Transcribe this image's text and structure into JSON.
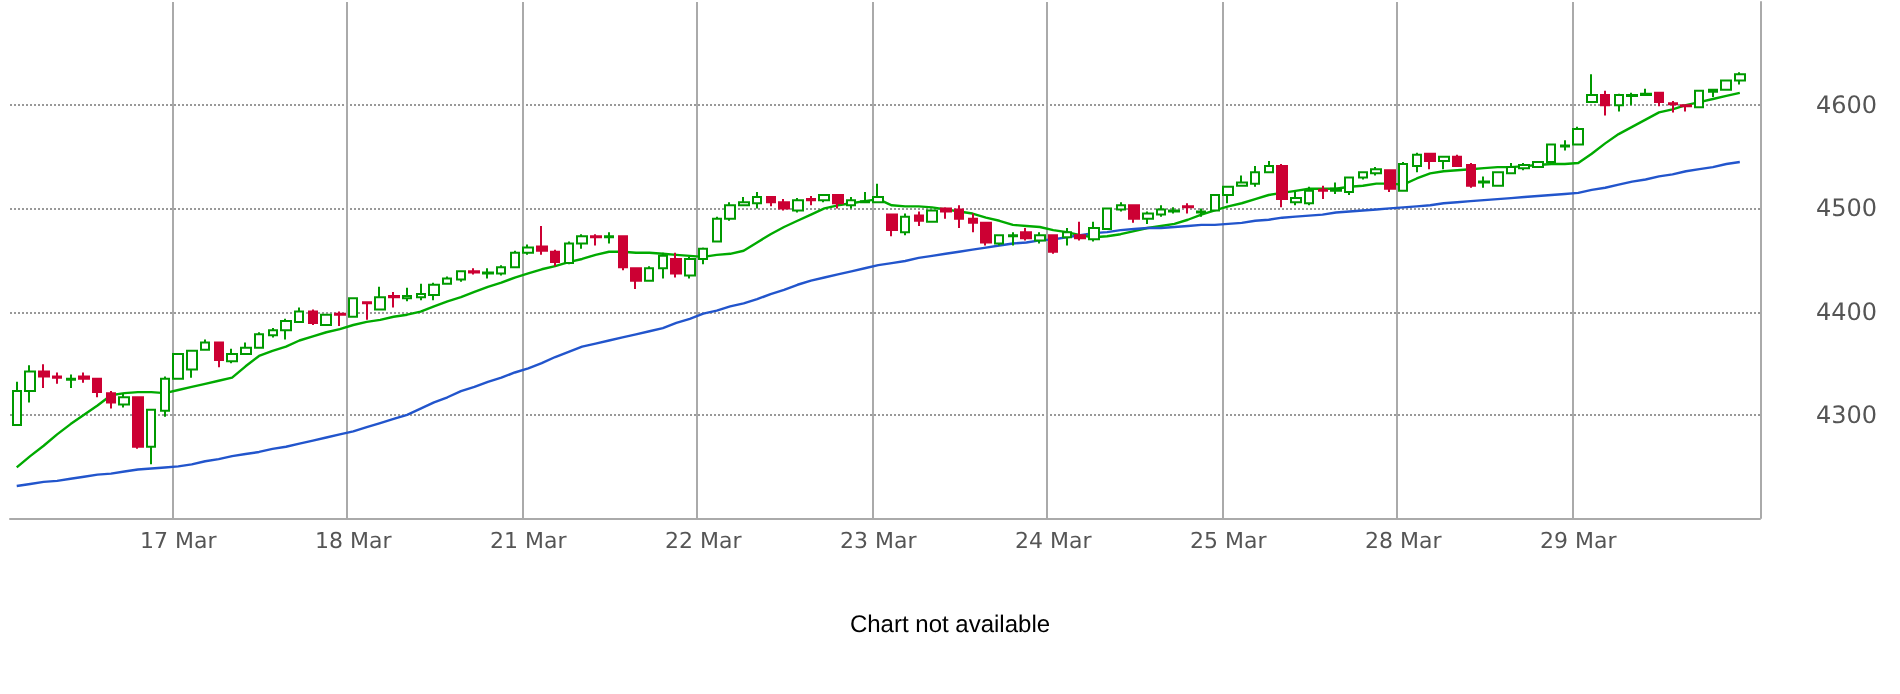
{
  "chart_data": {
    "type": "candlestick",
    "categories": [
      null,
      null,
      null,
      null,
      null,
      null,
      null,
      null,
      null,
      null,
      null,
      null,
      "17 Mar",
      null,
      null,
      null,
      null,
      null,
      null,
      null,
      null,
      null,
      null,
      null,
      null,
      "18 Mar",
      null,
      null,
      null,
      null,
      null,
      null,
      null,
      null,
      null,
      null,
      null,
      null,
      "21 Mar",
      null,
      null,
      null,
      null,
      null,
      null,
      null,
      null,
      null,
      null,
      null,
      null,
      "22 Mar",
      null,
      null,
      null,
      null,
      null,
      null,
      null,
      null,
      null,
      null,
      null,
      null,
      "23 Mar",
      null,
      null,
      null,
      null,
      null,
      null,
      null,
      null,
      null,
      null,
      null,
      null,
      "24 Mar",
      null,
      null,
      null,
      null,
      null,
      null,
      null,
      null,
      null,
      null,
      null,
      null,
      "25 Mar",
      null,
      null,
      null,
      null,
      null,
      null,
      null,
      null,
      null,
      null,
      null,
      null,
      "28 Mar",
      null,
      null,
      null,
      null,
      null,
      null,
      null,
      null,
      null,
      null,
      null,
      null,
      "29 Mar",
      null,
      null,
      null,
      null,
      null,
      null,
      null,
      null,
      null,
      null,
      null,
      null,
      null
    ],
    "ohlc": [
      [
        4290,
        4332,
        4290,
        4323
      ],
      [
        4323,
        4348,
        4312,
        4342
      ],
      [
        4342,
        4349,
        4326,
        4337
      ],
      [
        4337,
        4341,
        4330,
        4336
      ],
      [
        4334,
        4339,
        4326,
        4335
      ],
      [
        4337,
        4341,
        4331,
        4335
      ],
      [
        4335,
        4336,
        4317,
        4322
      ],
      [
        4321,
        4323,
        4306,
        4312
      ],
      [
        4310,
        4321,
        4307,
        4317
      ],
      [
        4317,
        4317,
        4267,
        4269
      ],
      [
        4269,
        4305,
        4252,
        4305
      ],
      [
        4304,
        4337,
        4298,
        4335
      ],
      [
        4335,
        4359,
        4335,
        4359
      ],
      [
        4344,
        4362,
        4336,
        4362
      ],
      [
        4363,
        4373,
        4363,
        4370
      ],
      [
        4370,
        4370,
        4346,
        4353
      ],
      [
        4352,
        4364,
        4350,
        4359
      ],
      [
        4359,
        4370,
        4358,
        4365
      ],
      [
        4365,
        4380,
        4364,
        4378
      ],
      [
        4377,
        4384,
        4375,
        4382
      ],
      [
        4382,
        4393,
        4373,
        4391
      ],
      [
        4390,
        4404,
        4389,
        4400
      ],
      [
        4400,
        4402,
        4387,
        4389
      ],
      [
        4387,
        4398,
        4387,
        4397
      ],
      [
        4398,
        4400,
        4386,
        4397
      ],
      [
        4395,
        4414,
        4394,
        4413
      ],
      [
        4409,
        4409,
        4392,
        4408
      ],
      [
        4402,
        4424,
        4401,
        4414
      ],
      [
        4415,
        4419,
        4404,
        4414
      ],
      [
        4413,
        4423,
        4410,
        4415
      ],
      [
        4414,
        4427,
        4411,
        4417
      ],
      [
        4416,
        4428,
        4411,
        4426
      ],
      [
        4427,
        4434,
        4426,
        4432
      ],
      [
        4431,
        4440,
        4429,
        4439
      ],
      [
        4439,
        4442,
        4436,
        4438
      ],
      [
        4437,
        4442,
        4432,
        4438
      ],
      [
        4437,
        4445,
        4435,
        4443
      ],
      [
        4443,
        4459,
        4442,
        4457
      ],
      [
        4457,
        4465,
        4455,
        4462
      ],
      [
        4463,
        4483,
        4455,
        4459
      ],
      [
        4458,
        4460,
        4444,
        4448
      ],
      [
        4447,
        4468,
        4446,
        4466
      ],
      [
        4466,
        4475,
        4461,
        4473
      ],
      [
        4473,
        4475,
        4464,
        4472
      ],
      [
        4472,
        4477,
        4466,
        4473
      ],
      [
        4473,
        4473,
        4440,
        4443
      ],
      [
        4442,
        4442,
        4422,
        4430
      ],
      [
        4430,
        4444,
        4429,
        4442
      ],
      [
        4442,
        4457,
        4432,
        4454
      ],
      [
        4451,
        4457,
        4433,
        4437
      ],
      [
        4435,
        4453,
        4432,
        4451
      ],
      [
        4451,
        4462,
        4446,
        4461
      ],
      [
        4468,
        4492,
        4468,
        4490
      ],
      [
        4490,
        4506,
        4488,
        4503
      ],
      [
        4503,
        4511,
        4503,
        4506
      ],
      [
        4505,
        4516,
        4500,
        4511
      ],
      [
        4511,
        4511,
        4502,
        4506
      ],
      [
        4506,
        4509,
        4498,
        4500
      ],
      [
        4498,
        4510,
        4496,
        4508
      ],
      [
        4509,
        4512,
        4503,
        4508
      ],
      [
        4508,
        4513,
        4506,
        4513
      ],
      [
        4513,
        4513,
        4500,
        4505
      ],
      [
        4503,
        4511,
        4500,
        4508
      ],
      [
        4506,
        4516,
        4505,
        4507
      ],
      [
        4506,
        4524,
        4506,
        4511
      ],
      [
        4494,
        4494,
        4473,
        4479
      ],
      [
        4477,
        4495,
        4474,
        4492
      ],
      [
        4493,
        4497,
        4483,
        4488
      ],
      [
        4487,
        4498,
        4487,
        4498
      ],
      [
        4500,
        4501,
        4490,
        4497
      ],
      [
        4499,
        4503,
        4481,
        4490
      ],
      [
        4490,
        4495,
        4477,
        4486
      ],
      [
        4486,
        4486,
        4464,
        4467
      ],
      [
        4466,
        4474,
        4464,
        4474
      ],
      [
        4473,
        4477,
        4464,
        4474
      ],
      [
        4477,
        4481,
        4469,
        4471
      ],
      [
        4469,
        4477,
        4466,
        4474
      ],
      [
        4474,
        4475,
        4456,
        4458
      ],
      [
        4472,
        4481,
        4464,
        4477
      ],
      [
        4474,
        4487,
        4469,
        4471
      ],
      [
        4470,
        4487,
        4468,
        4481
      ],
      [
        4480,
        4500,
        4479,
        4500
      ],
      [
        4499,
        4506,
        4497,
        4503
      ],
      [
        4503,
        4503,
        4486,
        4490
      ],
      [
        4490,
        4497,
        4485,
        4495
      ],
      [
        4494,
        4503,
        4492,
        4499
      ],
      [
        4497,
        4501,
        4495,
        4498
      ],
      [
        4502,
        4505,
        4495,
        4501
      ],
      [
        4496,
        4500,
        4492,
        4497
      ],
      [
        4498,
        4514,
        4497,
        4513
      ],
      [
        4513,
        4522,
        4505,
        4521
      ],
      [
        4522,
        4532,
        4521,
        4525
      ],
      [
        4524,
        4541,
        4521,
        4535
      ],
      [
        4535,
        4546,
        4535,
        4541
      ],
      [
        4541,
        4543,
        4501,
        4509
      ],
      [
        4506,
        4517,
        4503,
        4510
      ],
      [
        4505,
        4521,
        4503,
        4517
      ],
      [
        4518,
        4522,
        4509,
        4517
      ],
      [
        4517,
        4525,
        4514,
        4519
      ],
      [
        4516,
        4530,
        4513,
        4530
      ],
      [
        4530,
        4535,
        4528,
        4535
      ],
      [
        4534,
        4540,
        4532,
        4538
      ],
      [
        4537,
        4537,
        4516,
        4519
      ],
      [
        4517,
        4545,
        4517,
        4543
      ],
      [
        4541,
        4554,
        4535,
        4552
      ],
      [
        4553,
        4554,
        4538,
        4546
      ],
      [
        4546,
        4550,
        4538,
        4550
      ],
      [
        4550,
        4552,
        4540,
        4541
      ],
      [
        4542,
        4544,
        4520,
        4522
      ],
      [
        4525,
        4531,
        4520,
        4526
      ],
      [
        4522,
        4535,
        4522,
        4535
      ],
      [
        4534,
        4544,
        4533,
        4540
      ],
      [
        4539,
        4544,
        4537,
        4542
      ],
      [
        4540,
        4545,
        4540,
        4545
      ],
      [
        4545,
        4563,
        4544,
        4562
      ],
      [
        4560,
        4566,
        4556,
        4561
      ],
      [
        4562,
        4579,
        4562,
        4577
      ],
      [
        4603,
        4630,
        4603,
        4610
      ],
      [
        4610,
        4614,
        4590,
        4600
      ],
      [
        4600,
        4611,
        4594,
        4610
      ],
      [
        4609,
        4612,
        4600,
        4610
      ],
      [
        4610,
        4616,
        4610,
        4611
      ],
      [
        4612,
        4612,
        4599,
        4603
      ],
      [
        4602,
        4604,
        4593,
        4601
      ],
      [
        4600,
        4600,
        4594,
        4599
      ],
      [
        4598,
        4614,
        4597,
        4614
      ],
      [
        4613,
        4615,
        4608,
        4615
      ],
      [
        4615,
        4625,
        4614,
        4624
      ],
      [
        4624,
        4632,
        4620,
        4630
      ],
      null
    ],
    "colors": [
      "#009900",
      "#009900",
      "#cc0033",
      "#cc0033",
      "#009900",
      "#cc0033",
      "#cc0033",
      "#cc0033",
      "#009900",
      "#cc0033",
      "#009900",
      "#009900",
      "#009900",
      "#009900",
      "#009900",
      "#cc0033",
      "#009900",
      "#009900",
      "#009900",
      "#009900",
      "#009900",
      "#009900",
      "#cc0033",
      "#009900",
      "#cc0033",
      "#009900",
      "#cc0033",
      "#009900",
      "#cc0033",
      "#009900",
      "#009900",
      "#009900",
      "#009900",
      "#009900",
      "#cc0033",
      "#009900",
      "#009900",
      "#009900",
      "#009900",
      "#cc0033",
      "#cc0033",
      "#009900",
      "#009900",
      "#cc0033",
      "#009900",
      "#cc0033",
      "#cc0033",
      "#009900",
      "#009900",
      "#cc0033",
      "#009900",
      "#009900",
      "#009900",
      "#009900",
      "#009900",
      "#009900",
      "#cc0033",
      "#cc0033",
      "#009900",
      "#cc0033",
      "#009900",
      "#cc0033",
      "#009900",
      "#009900",
      "#009900",
      "#cc0033",
      "#009900",
      "#cc0033",
      "#009900",
      "#cc0033",
      "#cc0033",
      "#cc0033",
      "#cc0033",
      "#009900",
      "#009900",
      "#cc0033",
      "#009900",
      "#cc0033",
      "#009900",
      "#cc0033",
      "#009900",
      "#009900",
      "#009900",
      "#cc0033",
      "#009900",
      "#009900",
      "#009900",
      "#cc0033",
      "#009900",
      "#009900",
      "#009900",
      "#009900",
      "#009900",
      "#009900",
      "#cc0033",
      "#009900",
      "#009900",
      "#cc0033",
      "#009900",
      "#009900",
      "#009900",
      "#009900",
      "#cc0033",
      "#009900",
      "#009900",
      "#cc0033",
      "#009900",
      "#cc0033",
      "#cc0033",
      "#009900",
      "#009900",
      "#009900",
      "#009900",
      "#009900",
      "#009900",
      "#009900",
      "#009900",
      "#009900",
      "#cc0033",
      "#009900",
      "#009900",
      "#009900",
      "#cc0033",
      "#cc0033",
      "#cc0033",
      "#009900",
      "#009900",
      "#009900",
      "#009900",
      null
    ],
    "series": [
      {
        "type": "line",
        "color": "#00aa00",
        "values": [
          4249,
          4260,
          4270,
          4281,
          4291,
          4300,
          4309,
          4319,
          4321,
          4322,
          4322,
          4321,
          4324,
          4327,
          4330,
          4333,
          4336,
          4347,
          4357,
          4362,
          4366,
          4372,
          4376,
          4380,
          4383,
          4387,
          4390,
          4392,
          4395,
          4397,
          4400,
          4405,
          4410,
          4414,
          4419,
          4424,
          4428,
          4433,
          4437,
          4441,
          4444,
          4448,
          4451,
          4455,
          4458,
          4458,
          4457,
          4457,
          4456,
          4455,
          4454,
          4453,
          4455,
          4456,
          4459,
          4467,
          4475,
          4482,
          4488,
          4494,
          4500,
          4503,
          4505,
          4507,
          4509,
          4503,
          4502,
          4502,
          4501,
          4499,
          4497,
          4495,
          4491,
          4488,
          4484,
          4483,
          4482,
          4479,
          4477,
          4474,
          4472,
          4473,
          4475,
          4478,
          4481,
          4483,
          4485,
          4489,
          4494,
          4498,
          4502,
          4505,
          4509,
          4513,
          4515,
          4517,
          4519,
          4519,
          4519,
          4521,
          4522,
          4524,
          4524,
          4523,
          4529,
          4534,
          4536,
          4537,
          4538,
          4539,
          4540,
          4540,
          4541,
          4542,
          4543,
          4543,
          4544,
          4553,
          4563,
          4572,
          4579,
          4586,
          4593,
          4596,
          4600,
          4603,
          4606,
          4609,
          4612,
          null
        ]
      },
      {
        "type": "line",
        "color": "#2255cc",
        "values": [
          4231,
          4233,
          4235,
          4236,
          4238,
          4240,
          4242,
          4243,
          4245,
          4247,
          4248,
          4249,
          4250,
          4252,
          4255,
          4257,
          4260,
          4262,
          4264,
          4267,
          4269,
          4272,
          4275,
          4278,
          4281,
          4284,
          4288,
          4292,
          4296,
          4300,
          4306,
          4312,
          4317,
          4323,
          4327,
          4332,
          4336,
          4341,
          4345,
          4350,
          4356,
          4361,
          4366,
          4369,
          4372,
          4375,
          4378,
          4381,
          4384,
          4389,
          4393,
          4398,
          4401,
          4405,
          4408,
          4412,
          4417,
          4421,
          4426,
          4430,
          4433,
          4436,
          4439,
          4442,
          4445,
          4447,
          4449,
          4452,
          4454,
          4456,
          4458,
          4460,
          4462,
          4464,
          4466,
          4467,
          4469,
          4470,
          4472,
          4474,
          4476,
          4477,
          4479,
          4480,
          4481,
          4481,
          4482,
          4483,
          4484,
          4484,
          4485,
          4486,
          4488,
          4489,
          4491,
          4492,
          4493,
          4494,
          4496,
          4497,
          4498,
          4499,
          4500,
          4501,
          4502,
          4503,
          4505,
          4506,
          4507,
          4508,
          4509,
          4510,
          4511,
          4512,
          4513,
          4514,
          4515,
          4518,
          4520,
          4523,
          4526,
          4528,
          4531,
          4533,
          4536,
          4538,
          4540,
          4543,
          4545,
          null
        ]
      }
    ],
    "ylim": [
      4200,
      4700
    ],
    "yticks": [
      {
        "value": 4300,
        "label": "4300"
      },
      {
        "value": 4400,
        "label": "4400"
      },
      {
        "value": 4500,
        "label": "4500"
      },
      {
        "value": 4600,
        "label": "4600"
      }
    ],
    "grid": true,
    "marker": "none",
    "annotations": [
      "Chart not available"
    ]
  }
}
